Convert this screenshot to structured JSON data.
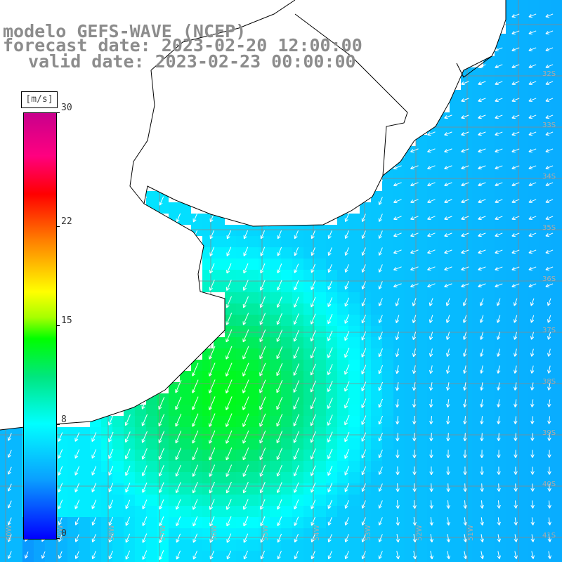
{
  "title": {
    "model": "modelo GEFS-WAVE (NCEP)",
    "forecast": "forecast date: 2023-02-20 12:00:00",
    "valid": "valid date: 2023-02-23 00:00:00"
  },
  "colorbar": {
    "unit": "[m/s]",
    "min": 0,
    "max": 30,
    "ticks": [
      "30",
      "22",
      "15",
      "8",
      "0"
    ],
    "tick_values": [
      30,
      22,
      15,
      8,
      0
    ],
    "stops": [
      {
        "v": 0,
        "color": "#0000ff"
      },
      {
        "v": 4,
        "color": "#0aa0ff"
      },
      {
        "v": 8,
        "color": "#00ffff"
      },
      {
        "v": 11.5,
        "color": "#00e680"
      },
      {
        "v": 14,
        "color": "#00ff00"
      },
      {
        "v": 15.5,
        "color": "#a6ff00"
      },
      {
        "v": 17.5,
        "color": "#ffff00"
      },
      {
        "v": 21,
        "color": "#ff8000"
      },
      {
        "v": 24.5,
        "color": "#ff0000"
      },
      {
        "v": 27,
        "color": "#ff0080"
      },
      {
        "v": 30,
        "color": "#c8008c"
      }
    ]
  },
  "map": {
    "projection": "lat-lon",
    "lat_range": [
      -41.5,
      -27
    ],
    "lon_range": [
      -61,
      -50
    ],
    "grid_step_deg": 1,
    "land_color": "#ffffff",
    "coastline_color": "#000000",
    "arrow_color": "#ffffff",
    "lat_labels": [
      "32S",
      "33S",
      "34S",
      "35S",
      "36S",
      "37S",
      "38S",
      "39S",
      "40S",
      "41S"
    ],
    "lon_labels": [
      "60W",
      "59W",
      "58W",
      "57W",
      "56W",
      "55W",
      "54W",
      "53W",
      "52W",
      "51W"
    ],
    "wind_direction": "southward / south-west over the shelf, westward offshore"
  }
}
